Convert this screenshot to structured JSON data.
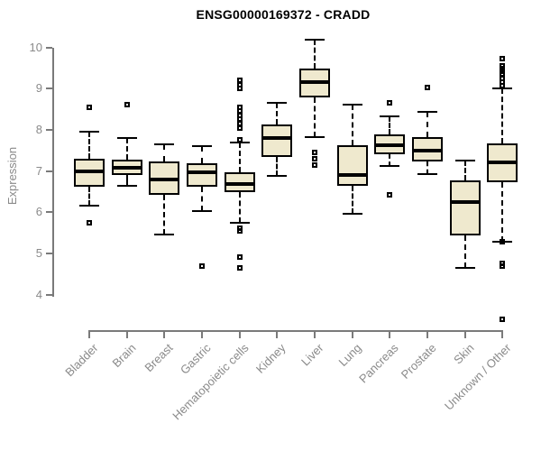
{
  "title": "ENSG00000169372 - CRADD",
  "chart_data": {
    "type": "boxplot",
    "title": "ENSG00000169372 - CRADD",
    "xlabel": "",
    "ylabel": "Expression",
    "ylim": [
      4,
      10
    ],
    "y_ticks": [
      10,
      9,
      8,
      7,
      6,
      5,
      4
    ],
    "grid": false,
    "legend": false,
    "colors": {
      "box_fill": "#efe9ce",
      "box_border": "#000000",
      "median": "#000000",
      "axis": "#7a7a7a",
      "tick_label": "#8a8a8a",
      "title": "#000000"
    },
    "categories": [
      "Bladder",
      "Brain",
      "Breast",
      "Gastric",
      "Hematopoietic cells",
      "Kidney",
      "Liver",
      "Lung",
      "Pancreas",
      "Prostate",
      "Skin",
      "Unknown / Other"
    ],
    "series": [
      {
        "name": "Bladder",
        "whisker_low": 6.15,
        "q1": 6.62,
        "median": 7.0,
        "q3": 7.3,
        "whisker_high": 7.95,
        "outliers": [
          8.55,
          5.73
        ]
      },
      {
        "name": "Brain",
        "whisker_low": 6.64,
        "q1": 6.91,
        "median": 7.08,
        "q3": 7.28,
        "whisker_high": 7.81,
        "outliers": [
          8.6
        ]
      },
      {
        "name": "Breast",
        "whisker_low": 5.46,
        "q1": 6.41,
        "median": 6.8,
        "q3": 7.24,
        "whisker_high": 7.65,
        "outliers": []
      },
      {
        "name": "Gastric",
        "whisker_low": 6.02,
        "q1": 6.62,
        "median": 6.97,
        "q3": 7.18,
        "whisker_high": 7.61,
        "outliers": [
          4.7
        ]
      },
      {
        "name": "Hematopoietic cells",
        "whisker_low": 5.74,
        "q1": 6.49,
        "median": 6.68,
        "q3": 6.97,
        "whisker_high": 7.7,
        "outliers": [
          9.2,
          9.1,
          9.0,
          8.55,
          8.45,
          8.35,
          8.25,
          8.15,
          8.05,
          7.75,
          5.62,
          5.55,
          4.9,
          4.65
        ]
      },
      {
        "name": "Kidney",
        "whisker_low": 6.89,
        "q1": 7.34,
        "median": 7.81,
        "q3": 8.12,
        "whisker_high": 8.65,
        "outliers": []
      },
      {
        "name": "Liver",
        "whisker_low": 7.83,
        "q1": 8.79,
        "median": 9.15,
        "q3": 9.48,
        "whisker_high": 10.19,
        "outliers": [
          7.45,
          7.3,
          7.15
        ]
      },
      {
        "name": "Lung",
        "whisker_low": 5.95,
        "q1": 6.64,
        "median": 6.91,
        "q3": 7.62,
        "whisker_high": 8.61,
        "outliers": []
      },
      {
        "name": "Pancreas",
        "whisker_low": 7.12,
        "q1": 7.41,
        "median": 7.63,
        "q3": 7.88,
        "whisker_high": 8.32,
        "outliers": [
          8.65,
          6.42
        ]
      },
      {
        "name": "Prostate",
        "whisker_low": 6.93,
        "q1": 7.24,
        "median": 7.49,
        "q3": 7.83,
        "whisker_high": 8.43,
        "outliers": [
          9.03
        ]
      },
      {
        "name": "Skin",
        "whisker_low": 4.64,
        "q1": 5.44,
        "median": 6.25,
        "q3": 6.76,
        "whisker_high": 7.25,
        "outliers": []
      },
      {
        "name": "Unknown / Other",
        "whisker_low": 5.28,
        "q1": 6.73,
        "median": 7.2,
        "q3": 7.67,
        "whisker_high": 9.0,
        "outliers": [
          9.73,
          9.55,
          9.48,
          9.42,
          9.35,
          9.25,
          9.15,
          9.08,
          5.28,
          4.75,
          4.68,
          3.4
        ]
      }
    ]
  }
}
